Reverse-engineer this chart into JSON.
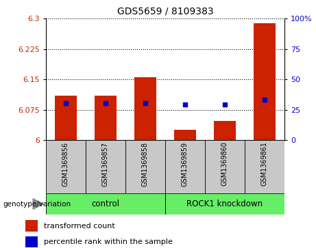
{
  "title": "GDS5659 / 8109383",
  "samples": [
    "GSM1369856",
    "GSM1369857",
    "GSM1369858",
    "GSM1369859",
    "GSM1369860",
    "GSM1369861"
  ],
  "red_values": [
    6.11,
    6.11,
    6.155,
    6.025,
    6.048,
    6.288
  ],
  "blue_values": [
    6.092,
    6.092,
    6.092,
    6.088,
    6.088,
    6.1
  ],
  "y_min": 6.0,
  "y_max": 6.3,
  "y_ticks": [
    6.0,
    6.075,
    6.15,
    6.225,
    6.3
  ],
  "y_tick_labels": [
    "6",
    "6.075",
    "6.15",
    "6.225",
    "6.3"
  ],
  "right_y_ticks": [
    0,
    25,
    50,
    75,
    100
  ],
  "right_y_labels": [
    "0",
    "25",
    "50",
    "75",
    "100%"
  ],
  "group_labels": [
    "control",
    "ROCK1 knockdown"
  ],
  "bar_color": "#CC2200",
  "dot_color": "#0000CC",
  "left_label_color": "#CC2200",
  "right_label_color": "#0000CC",
  "legend_red": "transformed count",
  "legend_blue": "percentile rank within the sample",
  "genotype_label": "genotype/variation",
  "sample_bg_color": "#C8C8C8",
  "group_bg_color": "#66EE66",
  "plot_bg": "#FFFFFF"
}
